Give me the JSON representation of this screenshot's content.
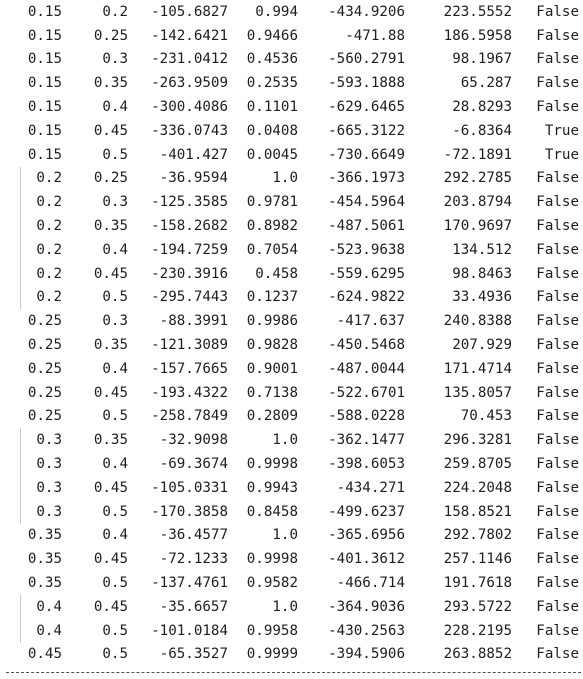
{
  "table": {
    "rows": [
      {
        "cells": [
          "0.15",
          "0.2",
          "-105.6827",
          "0.994",
          "-434.9206",
          "223.5552",
          "False"
        ]
      },
      {
        "cells": [
          "0.15",
          "0.25",
          "-142.6421",
          "0.9466",
          "-471.88",
          "186.5958",
          "False"
        ]
      },
      {
        "cells": [
          "0.15",
          "0.3",
          "-231.0412",
          "0.4536",
          "-560.2791",
          "98.1967",
          "False"
        ]
      },
      {
        "cells": [
          "0.15",
          "0.35",
          "-263.9509",
          "0.2535",
          "-593.1888",
          "65.287",
          "False"
        ]
      },
      {
        "cells": [
          "0.15",
          "0.4",
          "-300.4086",
          "0.1101",
          "-629.6465",
          "28.8293",
          "False"
        ]
      },
      {
        "cells": [
          "0.15",
          "0.45",
          "-336.0743",
          "0.0408",
          "-665.3122",
          "-6.8364",
          "True"
        ]
      },
      {
        "cells": [
          "0.15",
          "0.5",
          "-401.427",
          "0.0045",
          "-730.6649",
          "-72.1891",
          "True"
        ]
      },
      {
        "cells": [
          "0.2",
          "0.25",
          "-36.9594",
          "1.0",
          "-366.1973",
          "292.2785",
          "False"
        ]
      },
      {
        "cells": [
          "0.2",
          "0.3",
          "-125.3585",
          "0.9781",
          "-454.5964",
          "203.8794",
          "False"
        ]
      },
      {
        "cells": [
          "0.2",
          "0.35",
          "-158.2682",
          "0.8982",
          "-487.5061",
          "170.9697",
          "False"
        ]
      },
      {
        "cells": [
          "0.2",
          "0.4",
          "-194.7259",
          "0.7054",
          "-523.9638",
          "134.512",
          "False"
        ]
      },
      {
        "cells": [
          "0.2",
          "0.45",
          "-230.3916",
          "0.458",
          "-559.6295",
          "98.8463",
          "False"
        ]
      },
      {
        "cells": [
          "0.2",
          "0.5",
          "-295.7443",
          "0.1237",
          "-624.9822",
          "33.4936",
          "False"
        ]
      },
      {
        "cells": [
          "0.25",
          "0.3",
          "-88.3991",
          "0.9986",
          "-417.637",
          "240.8388",
          "False"
        ]
      },
      {
        "cells": [
          "0.25",
          "0.35",
          "-121.3089",
          "0.9828",
          "-450.5468",
          "207.929",
          "False"
        ]
      },
      {
        "cells": [
          "0.25",
          "0.4",
          "-157.7665",
          "0.9001",
          "-487.0044",
          "171.4714",
          "False"
        ]
      },
      {
        "cells": [
          "0.25",
          "0.45",
          "-193.4322",
          "0.7138",
          "-522.6701",
          "135.8057",
          "False"
        ]
      },
      {
        "cells": [
          "0.25",
          "0.5",
          "-258.7849",
          "0.2809",
          "-588.0228",
          "70.453",
          "False"
        ]
      },
      {
        "cells": [
          "0.3",
          "0.35",
          "-32.9098",
          "1.0",
          "-362.1477",
          "296.3281",
          "False"
        ]
      },
      {
        "cells": [
          "0.3",
          "0.4",
          "-69.3674",
          "0.9998",
          "-398.6053",
          "259.8705",
          "False"
        ]
      },
      {
        "cells": [
          "0.3",
          "0.45",
          "-105.0331",
          "0.9943",
          "-434.271",
          "224.2048",
          "False"
        ]
      },
      {
        "cells": [
          "0.3",
          "0.5",
          "-170.3858",
          "0.8458",
          "-499.6237",
          "158.8521",
          "False"
        ]
      },
      {
        "cells": [
          "0.35",
          "0.4",
          "-36.4577",
          "1.0",
          "-365.6956",
          "292.7802",
          "False"
        ]
      },
      {
        "cells": [
          "0.35",
          "0.45",
          "-72.1233",
          "0.9998",
          "-401.3612",
          "257.1146",
          "False"
        ]
      },
      {
        "cells": [
          "0.35",
          "0.5",
          "-137.4761",
          "0.9582",
          "-466.714",
          "191.7618",
          "False"
        ]
      },
      {
        "cells": [
          "0.4",
          "0.45",
          "-35.6657",
          "1.0",
          "-364.9036",
          "293.5722",
          "False"
        ]
      },
      {
        "cells": [
          "0.4",
          "0.5",
          "-101.0184",
          "0.9958",
          "-430.2563",
          "228.2195",
          "False"
        ]
      },
      {
        "cells": [
          "0.45",
          "0.5",
          "-65.3527",
          "0.9999",
          "-394.5906",
          "263.8852",
          "False"
        ]
      }
    ]
  },
  "colors": {
    "text": "#1e1e1e",
    "background": "#ffffff",
    "guide": "#c8c8c8",
    "rule": "#505050"
  }
}
